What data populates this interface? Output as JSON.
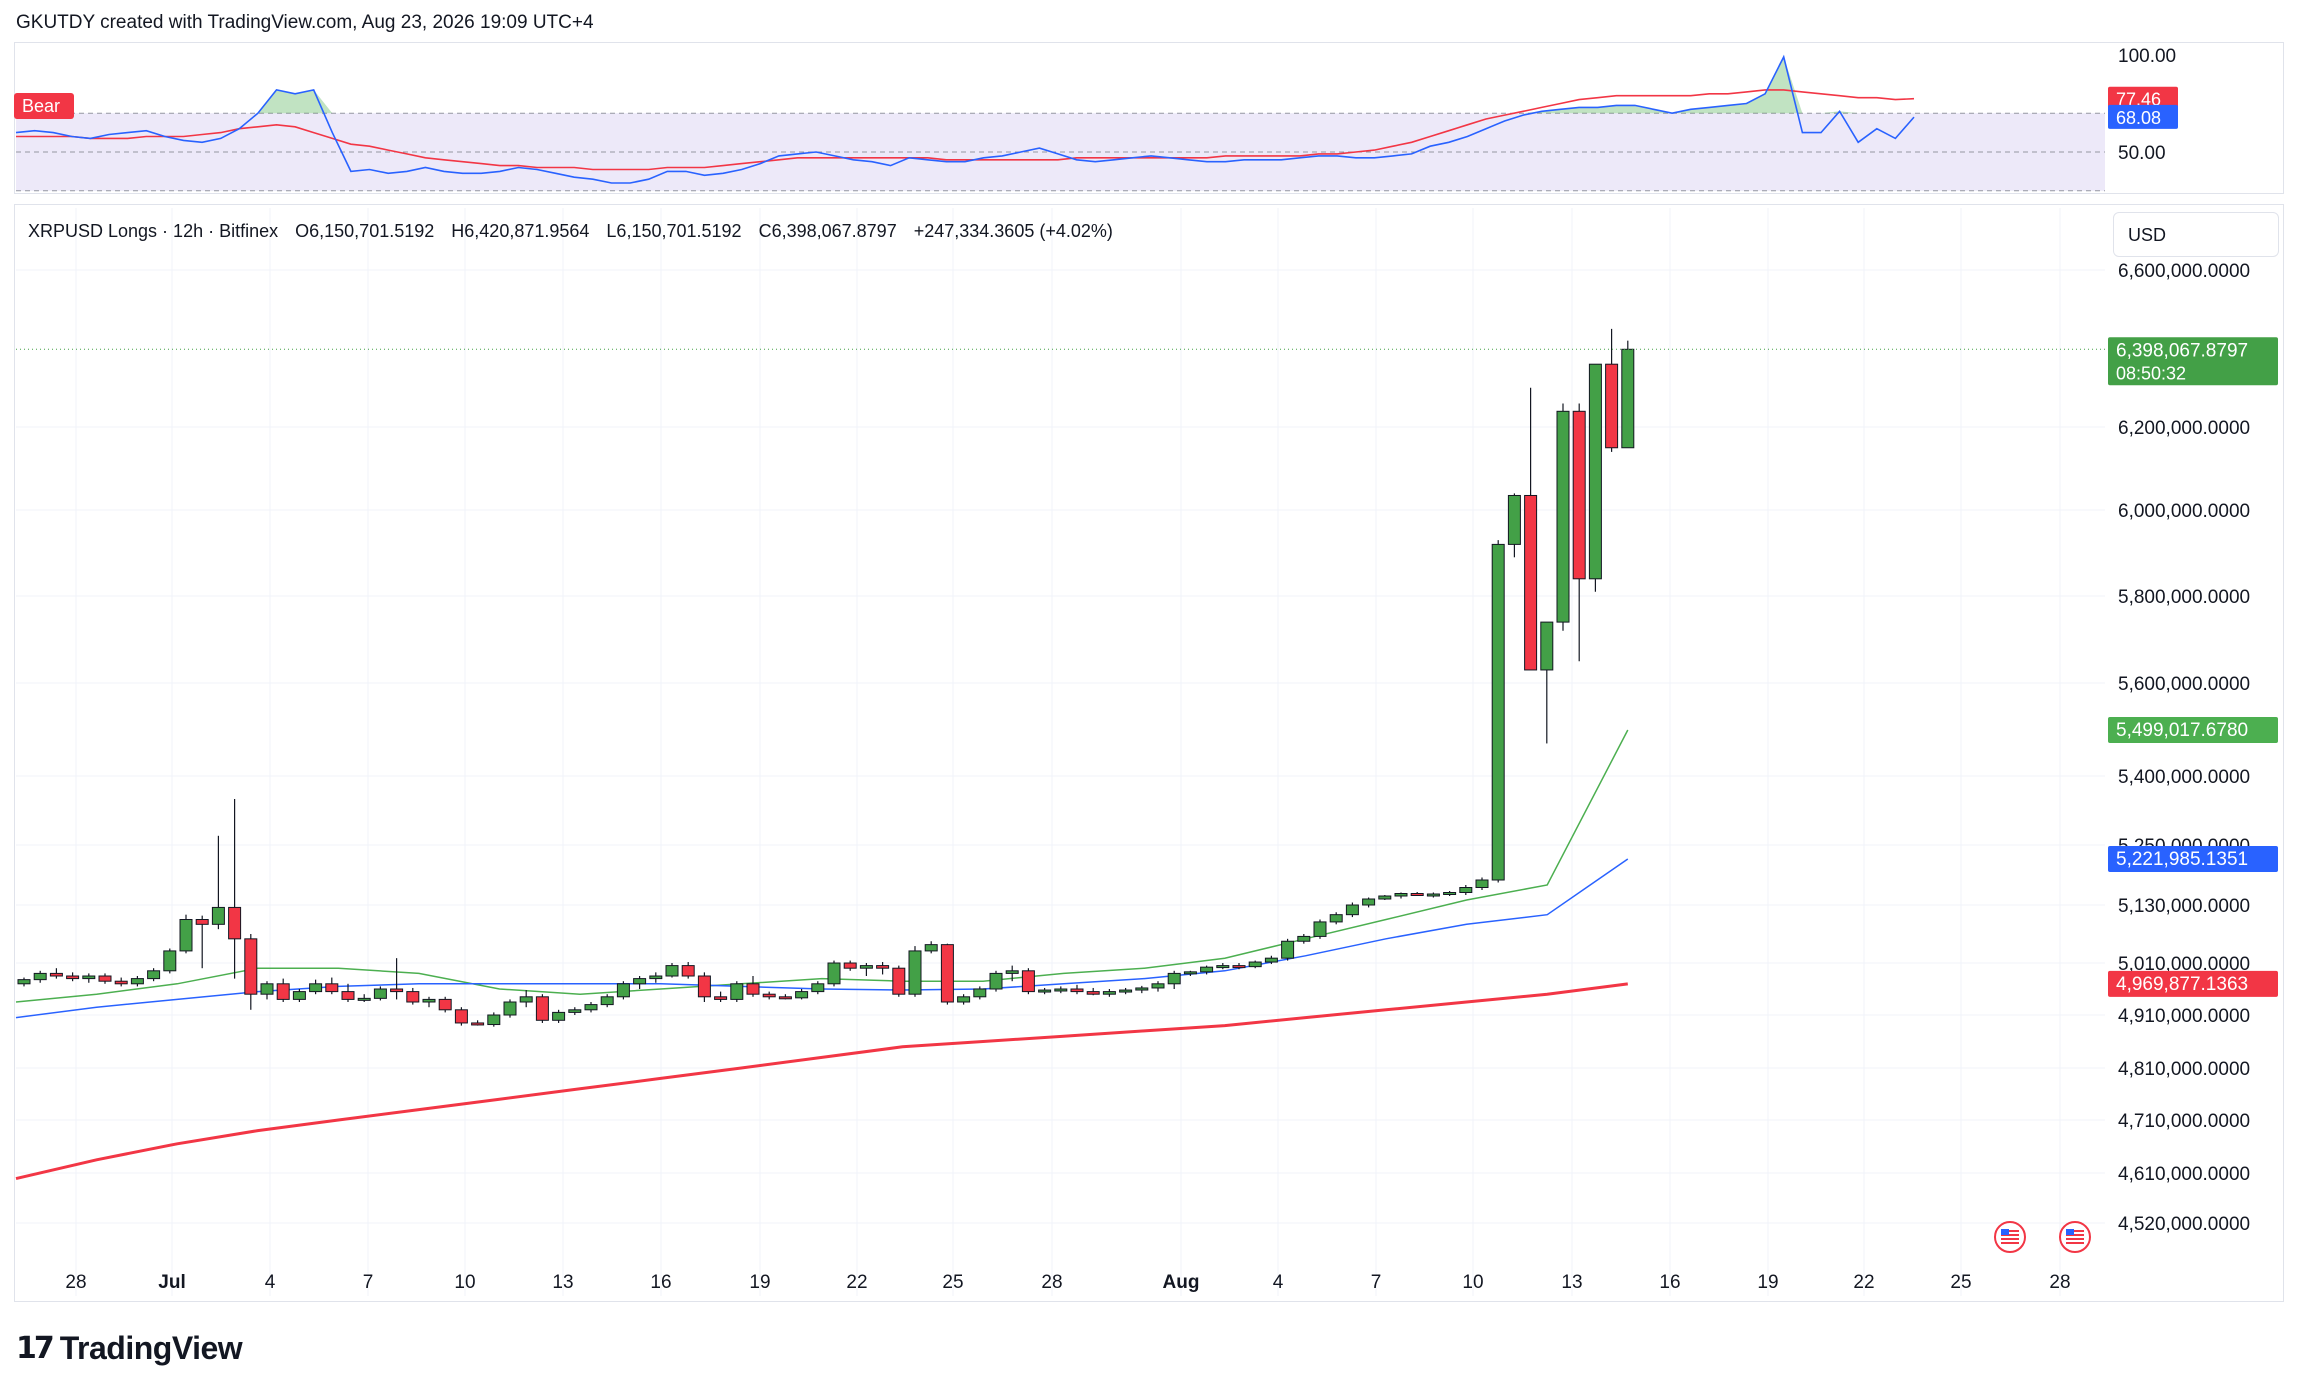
{
  "header": {
    "text": "GKUTDY created with TradingView.com, Aug 23, 2026 19:09 UTC+4"
  },
  "legend": {
    "symbol": "XRPUSD Longs · 12h · Bitfinex",
    "open": "O6,150,701.5192",
    "high": "H6,420,871.9564",
    "low": "L6,150,701.5192",
    "close": "C6,398,067.8797",
    "change": "+247,334.3605 (+4.02%)"
  },
  "currency": "USD",
  "footer": {
    "brand": "TradingView"
  },
  "rsi": {
    "tag": "Bear",
    "ticks": [
      "100.00",
      "50.00"
    ],
    "labels": {
      "signal": "77.46",
      "rsi": "68.08"
    },
    "colors": {
      "rsi": "#2962ff",
      "signal": "#f23645",
      "band": "#ede9f9",
      "fill": "#4caf50"
    }
  },
  "chart_data": [
    {
      "type": "candlestick",
      "title": "XRPUSD Longs · 12h · Bitfinex",
      "ylabel": "USD",
      "ylim": [
        4470000,
        6680000
      ],
      "x_ticks": [
        "28",
        "Jul",
        "4",
        "7",
        "10",
        "13",
        "16",
        "19",
        "22",
        "25",
        "28",
        "Aug",
        "4",
        "7",
        "10",
        "13",
        "16",
        "19",
        "22",
        "25",
        "28"
      ],
      "y_ticks": [
        "6,600,000.0000",
        "6,200,000.0000",
        "6,000,000.0000",
        "5,800,000.0000",
        "5,600,000.0000",
        "5,400,000.0000",
        "5,250,000.0000",
        "5,130,000.0000",
        "5,010,000.0000",
        "4,910,000.0000",
        "4,810,000.0000",
        "4,710,000.0000",
        "4,610,000.0000",
        "4,520,000.0000"
      ],
      "price_labels": [
        {
          "value": "6,398,067.8797",
          "sub": "08:50:32",
          "color": "#43a047"
        },
        {
          "value": "5,499,017.6780",
          "color": "#4caf50"
        },
        {
          "value": "5,221,985.1351",
          "color": "#2962ff"
        },
        {
          "value": "4,969,877.1363",
          "color": "#f23645"
        }
      ],
      "series": [
        {
          "name": "XRPUSD Longs",
          "kind": "ohlc",
          "ohlc": [
            [
              4970000,
              4982000,
              4965000,
              4978000
            ],
            [
              4978000,
              4995000,
              4972000,
              4990000
            ],
            [
              4990000,
              5000000,
              4980000,
              4985000
            ],
            [
              4985000,
              4992000,
              4975000,
              4980000
            ],
            [
              4980000,
              4990000,
              4972000,
              4985000
            ],
            [
              4985000,
              4990000,
              4970000,
              4975000
            ],
            [
              4975000,
              4982000,
              4965000,
              4970000
            ],
            [
              4970000,
              4985000,
              4965000,
              4980000
            ],
            [
              4980000,
              5000000,
              4975000,
              4995000
            ],
            [
              4995000,
              5040000,
              4990000,
              5035000
            ],
            [
              5035000,
              5110000,
              5030000,
              5100000
            ],
            [
              5100000,
              5108000,
              5000000,
              5090000
            ],
            [
              5090000,
              5270000,
              5080000,
              5125000
            ],
            [
              5125000,
              5350000,
              4980000,
              5060000
            ],
            [
              5060000,
              5070000,
              4920000,
              4950000
            ],
            [
              4950000,
              4975000,
              4940000,
              4970000
            ],
            [
              4970000,
              4980000,
              4935000,
              4940000
            ],
            [
              4940000,
              4960000,
              4935000,
              4955000
            ],
            [
              4955000,
              4978000,
              4950000,
              4970000
            ],
            [
              4970000,
              4982000,
              4950000,
              4955000
            ],
            [
              4955000,
              4970000,
              4935000,
              4940000
            ],
            [
              4940000,
              4950000,
              4935000,
              4942000
            ],
            [
              4942000,
              4965000,
              4938000,
              4960000
            ],
            [
              4960000,
              5020000,
              4940000,
              4955000
            ],
            [
              4955000,
              4962000,
              4930000,
              4935000
            ],
            [
              4935000,
              4945000,
              4925000,
              4940000
            ],
            [
              4940000,
              4945000,
              4915000,
              4920000
            ],
            [
              4920000,
              4925000,
              4890000,
              4895000
            ],
            [
              4895000,
              4900000,
              4890000,
              4892000
            ],
            [
              4892000,
              4915000,
              4888000,
              4910000
            ],
            [
              4910000,
              4940000,
              4905000,
              4935000
            ],
            [
              4935000,
              4958000,
              4925000,
              4945000
            ],
            [
              4945000,
              4950000,
              4895000,
              4900000
            ],
            [
              4900000,
              4920000,
              4895000,
              4915000
            ],
            [
              4915000,
              4925000,
              4910000,
              4920000
            ],
            [
              4920000,
              4935000,
              4915000,
              4930000
            ],
            [
              4930000,
              4950000,
              4925000,
              4945000
            ],
            [
              4945000,
              4975000,
              4940000,
              4970000
            ],
            [
              4970000,
              4985000,
              4960000,
              4980000
            ],
            [
              4980000,
              4992000,
              4972000,
              4985000
            ],
            [
              4985000,
              5010000,
              4982000,
              5005000
            ],
            [
              5005000,
              5012000,
              4980000,
              4985000
            ],
            [
              4985000,
              4992000,
              4935000,
              4945000
            ],
            [
              4945000,
              4955000,
              4935000,
              4940000
            ],
            [
              4940000,
              4975000,
              4935000,
              4970000
            ],
            [
              4970000,
              4985000,
              4945000,
              4950000
            ],
            [
              4950000,
              4955000,
              4940000,
              4945000
            ],
            [
              4945000,
              4950000,
              4940000,
              4943000
            ],
            [
              4943000,
              4960000,
              4940000,
              4955000
            ],
            [
              4955000,
              4975000,
              4950000,
              4970000
            ],
            [
              4970000,
              5015000,
              4965000,
              5010000
            ],
            [
              5010000,
              5015000,
              4995000,
              5000000
            ],
            [
              5000000,
              5010000,
              4985000,
              5005000
            ],
            [
              5005000,
              5012000,
              4988000,
              5000000
            ],
            [
              5000000,
              5005000,
              4945000,
              4950000
            ],
            [
              4950000,
              5045000,
              4945000,
              5035000
            ],
            [
              5035000,
              5055000,
              5030000,
              5048000
            ],
            [
              5048000,
              5050000,
              4930000,
              4935000
            ],
            [
              4935000,
              4950000,
              4930000,
              4945000
            ],
            [
              4945000,
              4965000,
              4940000,
              4960000
            ],
            [
              4960000,
              4995000,
              4955000,
              4990000
            ],
            [
              4990000,
              5005000,
              4975000,
              4995000
            ],
            [
              4995000,
              5000000,
              4950000,
              4955000
            ],
            [
              4955000,
              4962000,
              4950000,
              4958000
            ],
            [
              4958000,
              4965000,
              4952000,
              4960000
            ],
            [
              4960000,
              4968000,
              4950000,
              4955000
            ],
            [
              4955000,
              4962000,
              4948000,
              4950000
            ],
            [
              4950000,
              4960000,
              4945000,
              4955000
            ],
            [
              4955000,
              4962000,
              4950000,
              4958000
            ],
            [
              4958000,
              4966000,
              4952000,
              4962000
            ],
            [
              4962000,
              4975000,
              4955000,
              4970000
            ],
            [
              4970000,
              4995000,
              4960000,
              4990000
            ],
            [
              4990000,
              4995000,
              4985000,
              4993000
            ],
            [
              4993000,
              5005000,
              4988000,
              5002000
            ],
            [
              5002000,
              5010000,
              4998000,
              5005000
            ],
            [
              5005000,
              5010000,
              4998000,
              5003000
            ],
            [
              5003000,
              5015000,
              5000000,
              5012000
            ],
            [
              5012000,
              5025000,
              5008000,
              5020000
            ],
            [
              5020000,
              5060000,
              5015000,
              5055000
            ],
            [
              5055000,
              5070000,
              5050000,
              5065000
            ],
            [
              5065000,
              5100000,
              5060000,
              5095000
            ],
            [
              5095000,
              5115000,
              5090000,
              5110000
            ],
            [
              5110000,
              5135000,
              5105000,
              5130000
            ],
            [
              5130000,
              5145000,
              5125000,
              5142000
            ],
            [
              5142000,
              5150000,
              5140000,
              5148000
            ],
            [
              5148000,
              5155000,
              5143000,
              5153000
            ],
            [
              5153000,
              5156000,
              5148000,
              5150000
            ],
            [
              5150000,
              5155000,
              5145000,
              5152000
            ],
            [
              5152000,
              5158000,
              5148000,
              5155000
            ],
            [
              5155000,
              5170000,
              5150000,
              5165000
            ],
            [
              5165000,
              5185000,
              5160000,
              5180000
            ],
            [
              5180000,
              5930000,
              5175000,
              5920000
            ],
            [
              5920000,
              6040000,
              5890000,
              6035000
            ],
            [
              6035000,
              6300000,
              5630000,
              5630000
            ],
            [
              5630000,
              5730000,
              5470000,
              5740000
            ],
            [
              5740000,
              6260000,
              5720000,
              6240000
            ],
            [
              6240000,
              6260000,
              5650000,
              5840000
            ],
            [
              5840000,
              6350000,
              5810000,
              6360000
            ],
            [
              6360000,
              6450000,
              6140000,
              6150000
            ],
            [
              6150000,
              6420000,
              6150000,
              6398000
            ]
          ]
        },
        {
          "name": "EMA fast",
          "kind": "line",
          "color": "#4caf50",
          "values_sampled": [
            4935000,
            4950000,
            4970000,
            5000000,
            5000000,
            4990000,
            4960000,
            4950000,
            4960000,
            4970000,
            4980000,
            4975000,
            4975000,
            4990000,
            5000000,
            5020000,
            5060000,
            5100000,
            5140000,
            5170000,
            5499017
          ]
        },
        {
          "name": "EMA mid",
          "kind": "line",
          "color": "#2962ff",
          "values_sampled": [
            4905000,
            4925000,
            4940000,
            4955000,
            4965000,
            4970000,
            4970000,
            4970000,
            4970000,
            4965000,
            4960000,
            4958000,
            4960000,
            4970000,
            4980000,
            4995000,
            5025000,
            5060000,
            5090000,
            5110000,
            5221985
          ]
        },
        {
          "name": "EMA slow",
          "kind": "line",
          "color": "#f23645",
          "values_sampled": [
            4600000,
            4635000,
            4665000,
            4690000,
            4710000,
            4730000,
            4750000,
            4770000,
            4790000,
            4810000,
            4830000,
            4850000,
            4860000,
            4870000,
            4880000,
            4890000,
            4905000,
            4920000,
            4935000,
            4950000,
            4969877
          ]
        }
      ]
    },
    {
      "type": "line",
      "ylim": [
        12,
        105
      ],
      "y_ticks": [
        "100.00",
        "50.00"
      ],
      "series": [
        {
          "name": "RSI",
          "color": "#2962ff",
          "values": [
            60,
            61,
            60,
            58,
            57,
            59,
            60,
            61,
            58,
            56,
            55,
            57,
            62,
            70,
            82,
            80,
            82,
            60,
            40,
            41,
            39,
            40,
            42,
            40,
            39,
            39,
            40,
            42,
            41,
            39,
            37,
            36,
            34,
            34,
            36,
            40,
            40,
            38,
            39,
            41,
            44,
            48,
            49,
            50,
            48,
            46,
            45,
            43,
            47,
            46,
            45,
            45,
            47,
            48,
            50,
            52,
            49,
            46,
            45,
            46,
            47,
            48,
            47,
            46,
            45,
            45,
            46,
            46,
            46,
            47,
            48,
            48,
            47,
            47,
            48,
            49,
            53,
            55,
            58,
            62,
            66,
            69,
            71,
            72,
            73,
            73,
            74,
            74,
            72,
            70,
            72,
            73,
            74,
            75,
            80,
            99,
            60,
            60,
            71,
            55,
            62,
            57,
            68
          ]
        },
        {
          "name": "Signal",
          "color": "#f23645",
          "values": [
            58,
            58,
            58,
            58,
            57,
            57,
            57,
            58,
            58,
            58,
            59,
            60,
            62,
            63,
            64,
            63,
            60,
            57,
            54,
            53,
            51,
            49,
            47,
            46,
            45,
            44,
            43,
            43,
            42,
            42,
            42,
            41,
            41,
            41,
            41,
            42,
            42,
            42,
            43,
            44,
            45,
            46,
            47,
            47,
            47,
            47,
            47,
            47,
            47,
            47,
            46,
            46,
            46,
            46,
            46,
            46,
            46,
            47,
            47,
            47,
            47,
            47,
            47,
            47,
            47,
            48,
            48,
            48,
            48,
            48,
            49,
            49,
            50,
            51,
            53,
            55,
            58,
            61,
            64,
            67,
            69,
            71,
            73,
            75,
            77,
            78,
            79,
            79,
            79,
            79,
            79,
            80,
            80,
            81,
            82,
            82,
            81,
            80,
            79,
            78,
            78,
            77,
            77.46
          ]
        }
      ]
    }
  ]
}
